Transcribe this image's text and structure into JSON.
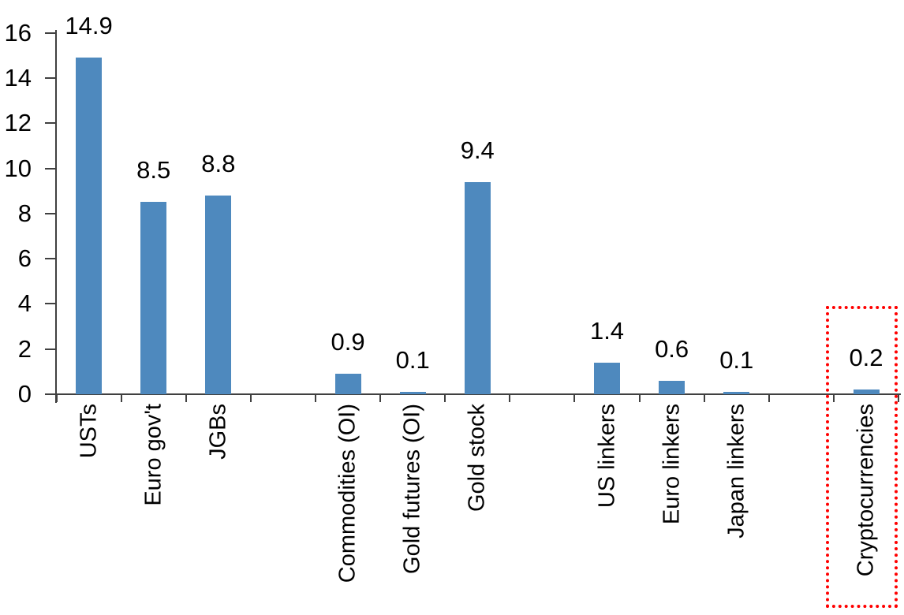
{
  "chart_data": {
    "type": "bar",
    "categories": [
      "USTs",
      "Euro gov't",
      "JGBs",
      "Commodities (OI)",
      "Gold futures (OI)",
      "Gold stock",
      "US linkers",
      "Euro linkers",
      "Japan linkers",
      "Cryptocurrencies"
    ],
    "values": [
      14.9,
      8.5,
      8.8,
      0.9,
      0.1,
      9.4,
      1.4,
      0.6,
      0.1,
      0.2
    ],
    "value_labels": [
      "14.9",
      "8.5",
      "8.8",
      "0.9",
      "0.1",
      "9.4",
      "1.4",
      "0.6",
      "0.1",
      "0.2"
    ],
    "slots": [
      0,
      1,
      2,
      4,
      5,
      6,
      8,
      9,
      10,
      12
    ],
    "total_slots": 13,
    "y_ticks": [
      "16",
      "14",
      "12",
      "10",
      "8",
      "6",
      "4",
      "2",
      "0"
    ],
    "ylim": [
      0,
      16
    ],
    "grid": false,
    "legend": false,
    "xlabel": "",
    "ylabel": "",
    "bar_color": "#4E89BE",
    "axis_color": "#404040",
    "text_color": "#000000",
    "category_label_rotation_deg": -90,
    "highlight": {
      "target": "Cryptocurrencies",
      "border_color": "#FF0000",
      "border_style": "dotted"
    }
  }
}
